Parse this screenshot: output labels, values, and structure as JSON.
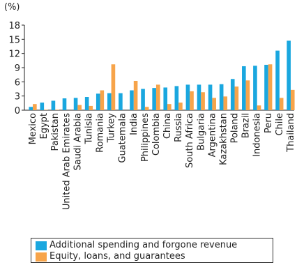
{
  "chart_data": {
    "type": "bar",
    "unit_label": "(%)",
    "ylim": [
      0,
      18
    ],
    "yticks": [
      0,
      3,
      6,
      9,
      12,
      15,
      18
    ],
    "categories": [
      "Mexico",
      "Egypt",
      "Pakistan",
      "United Arab Emirates",
      "Saudi Arabia",
      "Tunisia",
      "Romania",
      "Turkey",
      "Guatemala",
      "India",
      "Philippines",
      "Colombia",
      "China",
      "Russia",
      "South Africa",
      "Bulgaria",
      "Argentina",
      "Kazakhstan",
      "Poland",
      "Brazil",
      "Indonesia",
      "Peru",
      "Chile",
      "Thailand"
    ],
    "series": [
      {
        "name": "Additional spending and forgone revenue",
        "color": "#1aa7df",
        "values": [
          0.7,
          1.6,
          2.0,
          2.5,
          2.6,
          2.8,
          3.5,
          3.6,
          3.6,
          4.2,
          4.5,
          4.7,
          4.8,
          5.1,
          5.4,
          5.4,
          5.4,
          5.5,
          6.6,
          9.3,
          9.4,
          9.6,
          12.6,
          14.7
        ]
      },
      {
        "name": "Equity, loans, and guarantees",
        "color": "#f7a44a",
        "values": [
          1.3,
          0.1,
          0.1,
          0.0,
          1.1,
          0.9,
          4.2,
          9.7,
          0.0,
          6.2,
          0.7,
          5.4,
          1.3,
          1.6,
          4.0,
          3.8,
          2.6,
          2.9,
          5.0,
          6.3,
          1.0,
          9.7,
          2.6,
          4.3
        ]
      }
    ],
    "grid": false,
    "legend_position": "bottom"
  }
}
